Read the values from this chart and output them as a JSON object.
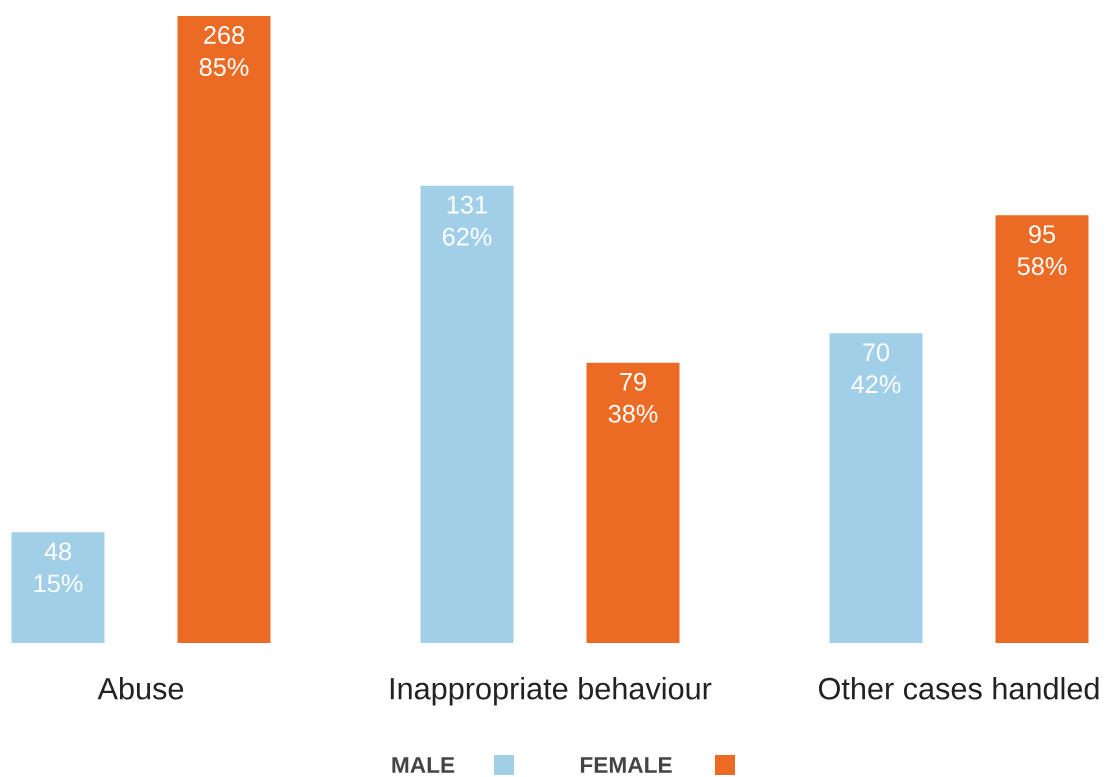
{
  "chart_data": {
    "type": "bar",
    "categories": [
      "Abuse",
      "Inappropriate behaviour",
      "Other cases handled"
    ],
    "series": [
      {
        "name": "MALE",
        "color": "#a1cfe8",
        "values": [
          15,
          62,
          42
        ],
        "value_labels": [
          "48 15%",
          "131 62%",
          "70 42%"
        ]
      },
      {
        "name": "FEMALE",
        "color": "#eb6b25",
        "values": [
          85,
          38,
          58
        ],
        "value_labels": [
          "268 85%",
          "79 38%",
          "95 58%"
        ]
      }
    ],
    "legend": "bottom"
  }
}
